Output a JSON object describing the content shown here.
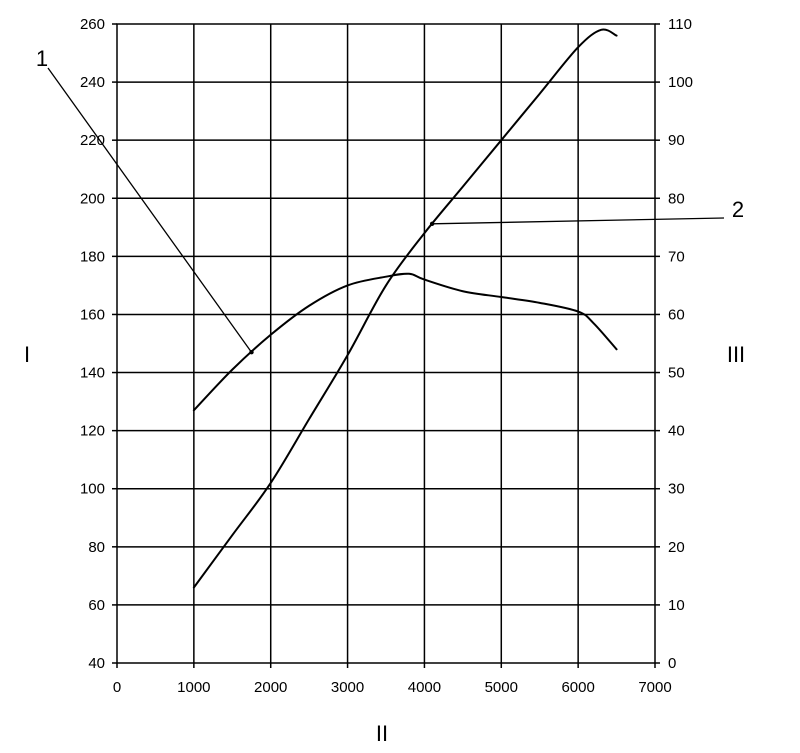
{
  "chart_data": {
    "type": "line",
    "xlabel": "II",
    "ylabel_left": "I",
    "ylabel_right": "III",
    "xlim": [
      0,
      7000
    ],
    "ylim_left": [
      40,
      260
    ],
    "ylim_right": [
      0,
      110
    ],
    "x_ticks": [
      "0",
      "1000",
      "2000",
      "3000",
      "4000",
      "5000",
      "6000",
      "7000"
    ],
    "y_left_ticks": [
      "40",
      "60",
      "80",
      "100",
      "120",
      "140",
      "160",
      "180",
      "200",
      "220",
      "240",
      "260"
    ],
    "y_right_ticks": [
      "0",
      "10",
      "20",
      "30",
      "40",
      "50",
      "60",
      "70",
      "80",
      "90",
      "100",
      "110"
    ],
    "grid": true,
    "series": [
      {
        "label": "1",
        "axis": "left",
        "x": [
          1000,
          1500,
          2000,
          2500,
          3000,
          3500,
          3800,
          4000,
          4500,
          5000,
          5500,
          6000,
          6200,
          6500
        ],
        "y": [
          127,
          141,
          153,
          163,
          170,
          173,
          174,
          172,
          168,
          166,
          164,
          161,
          157,
          148
        ]
      },
      {
        "label": "2",
        "axis": "right",
        "x": [
          1000,
          1500,
          2000,
          2500,
          3000,
          3500,
          4000,
          4500,
          5000,
          5500,
          6000,
          6300,
          6500
        ],
        "y": [
          13,
          22,
          31,
          42,
          53,
          65,
          74,
          82,
          90,
          98,
          106,
          109,
          108
        ]
      }
    ],
    "annotations": [
      {
        "text": "1",
        "series": "1",
        "at_x": 1750
      },
      {
        "text": "2",
        "series": "2",
        "at_x": 4100
      }
    ]
  }
}
